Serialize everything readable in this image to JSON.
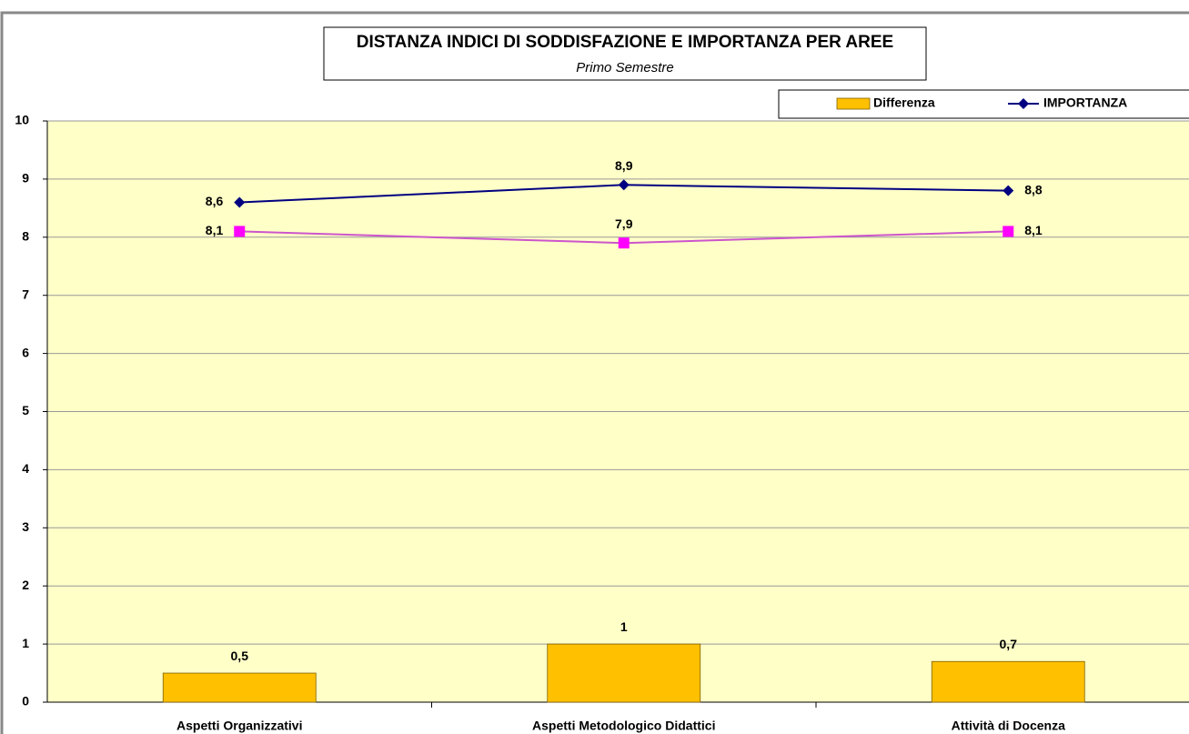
{
  "chart_data": {
    "type": "combo",
    "title": "DISTANZA INDICI DI SODDISFAZIONE E IMPORTANZA PER AREE",
    "subtitle": "Primo Semestre",
    "categories": [
      "Aspetti Organizzativi",
      "Aspetti Metodologico Didattici",
      "Attività di Docenza"
    ],
    "series": [
      {
        "name": "Differenza",
        "type": "bar",
        "color": "#ffc000",
        "values": [
          0.5,
          1,
          0.7
        ],
        "value_labels": [
          "0,5",
          "1",
          "0,7"
        ]
      },
      {
        "name": "IMPORTANZA",
        "type": "line",
        "marker": "diamond",
        "color": "#000080",
        "values": [
          8.6,
          8.9,
          8.8
        ],
        "value_labels": [
          "8,6",
          "8,9",
          "8,8"
        ]
      },
      {
        "type": "line",
        "marker": "square",
        "color": "#ff00ff",
        "values": [
          8.1,
          7.9,
          8.1
        ],
        "value_labels": [
          "8,1",
          "7,9",
          "8,1"
        ]
      }
    ],
    "ylim": [
      0,
      10
    ],
    "yticks": [
      0,
      1,
      2,
      3,
      4,
      5,
      6,
      7,
      8,
      9,
      10
    ],
    "grid": true
  }
}
